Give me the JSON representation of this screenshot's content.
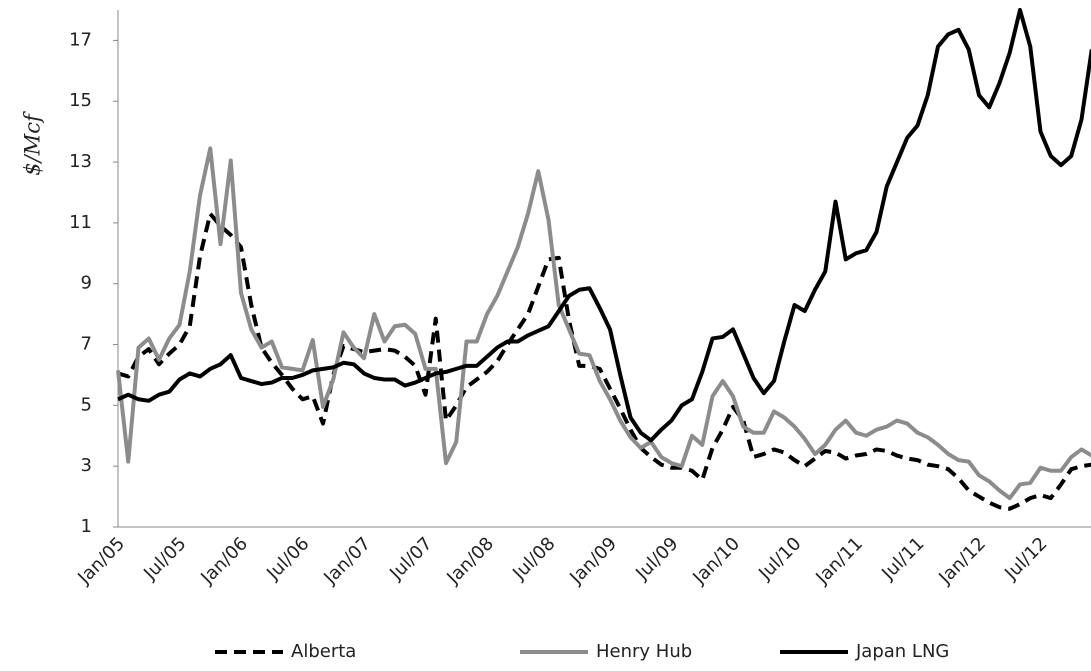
{
  "chart_data": {
    "type": "line",
    "y_label": "$/Mcf",
    "categories": [
      "Jan/05",
      null,
      null,
      null,
      null,
      null,
      "Jul/05",
      null,
      null,
      null,
      null,
      null,
      "Jan/06",
      null,
      null,
      null,
      null,
      null,
      "Jul/06",
      null,
      null,
      null,
      null,
      null,
      "Jan/07",
      null,
      null,
      null,
      null,
      null,
      "Jul/07",
      null,
      null,
      null,
      null,
      null,
      "Jan/08",
      null,
      null,
      null,
      null,
      null,
      "Jul/08",
      null,
      null,
      null,
      null,
      null,
      "Jan/09",
      null,
      null,
      null,
      null,
      null,
      "Jul/09",
      null,
      null,
      null,
      null,
      null,
      "Jan/10",
      null,
      null,
      null,
      null,
      null,
      "Jul/10",
      null,
      null,
      null,
      null,
      null,
      "Jan/11",
      null,
      null,
      null,
      null,
      null,
      "Jul/11",
      null,
      null,
      null,
      null,
      null,
      "Jan/12",
      null,
      null,
      null,
      null,
      null,
      "Jul/12",
      null,
      null,
      null,
      null,
      null
    ],
    "series": [
      {
        "name": "Alberta",
        "color": "#000000",
        "style": "dashed",
        "values": [
          6.05,
          5.95,
          6.6,
          6.85,
          6.35,
          6.7,
          7.0,
          7.6,
          9.9,
          11.3,
          10.9,
          10.6,
          10.2,
          8.3,
          6.9,
          6.4,
          6.0,
          5.55,
          5.2,
          5.3,
          4.4,
          6.0,
          6.95,
          6.85,
          6.75,
          6.8,
          6.85,
          6.8,
          6.6,
          6.3,
          5.35,
          7.85,
          4.5,
          5.0,
          5.6,
          5.85,
          6.1,
          6.45,
          7.0,
          7.5,
          8.0,
          8.9,
          9.8,
          9.85,
          7.8,
          6.3,
          6.3,
          6.2,
          5.55,
          4.9,
          4.2,
          3.6,
          3.3,
          3.05,
          2.95,
          2.95,
          2.85,
          2.55,
          3.6,
          4.2,
          4.95,
          4.5,
          3.3,
          3.4,
          3.55,
          3.45,
          3.2,
          3.0,
          3.25,
          3.5,
          3.45,
          3.25,
          3.35,
          3.4,
          3.55,
          3.5,
          3.35,
          3.25,
          3.2,
          3.05,
          3.0,
          2.9,
          2.6,
          2.2,
          2.0,
          1.8,
          1.65,
          1.6,
          1.75,
          1.95,
          2.05,
          1.95,
          2.4,
          2.9,
          3.0,
          3.05
        ]
      },
      {
        "name": "Henry Hub",
        "color": "#8c8c8c",
        "style": "solid",
        "values": [
          6.15,
          3.15,
          6.9,
          7.2,
          6.5,
          7.2,
          7.65,
          9.4,
          11.9,
          13.45,
          10.3,
          13.05,
          8.7,
          7.5,
          6.9,
          7.1,
          6.25,
          6.2,
          6.15,
          7.15,
          4.95,
          5.85,
          7.4,
          6.9,
          6.55,
          8.0,
          7.1,
          7.6,
          7.65,
          7.35,
          6.2,
          6.2,
          3.1,
          3.8,
          7.1,
          7.1,
          8.0,
          8.6,
          9.4,
          10.2,
          11.3,
          12.7,
          11.1,
          8.3,
          7.5,
          6.7,
          6.65,
          5.8,
          5.2,
          4.5,
          3.95,
          3.6,
          3.8,
          3.3,
          3.1,
          3.0,
          4.0,
          3.7,
          5.3,
          5.8,
          5.3,
          4.3,
          4.1,
          4.1,
          4.8,
          4.6,
          4.3,
          3.9,
          3.4,
          3.7,
          4.2,
          4.5,
          4.1,
          4.0,
          4.2,
          4.3,
          4.5,
          4.4,
          4.1,
          3.95,
          3.7,
          3.4,
          3.2,
          3.15,
          2.7,
          2.5,
          2.2,
          1.95,
          2.4,
          2.45,
          2.95,
          2.85,
          2.85,
          3.3,
          3.55,
          3.35
        ]
      },
      {
        "name": "Japan LNG",
        "color": "#000000",
        "style": "solid",
        "values": [
          5.2,
          5.35,
          5.2,
          5.15,
          5.35,
          5.45,
          5.85,
          6.05,
          5.95,
          6.2,
          6.35,
          6.65,
          5.9,
          5.8,
          5.7,
          5.75,
          5.9,
          5.9,
          6.0,
          6.15,
          6.2,
          6.25,
          6.4,
          6.35,
          6.05,
          5.9,
          5.85,
          5.85,
          5.65,
          5.75,
          5.9,
          6.05,
          6.1,
          6.2,
          6.3,
          6.3,
          6.6,
          6.9,
          7.1,
          7.1,
          7.3,
          7.45,
          7.6,
          8.1,
          8.6,
          8.8,
          8.85,
          8.2,
          7.5,
          6.0,
          4.6,
          4.1,
          3.85,
          4.2,
          4.5,
          5.0,
          5.2,
          6.1,
          7.2,
          7.25,
          7.5,
          6.7,
          5.9,
          5.4,
          5.8,
          7.1,
          8.3,
          8.1,
          8.8,
          9.4,
          11.7,
          9.8,
          10.0,
          10.1,
          10.7,
          12.2,
          13.0,
          13.8,
          14.2,
          15.2,
          16.8,
          17.2,
          17.35,
          16.7,
          15.2,
          14.8,
          15.6,
          16.6,
          18.0,
          16.8,
          14.0,
          13.2,
          12.9,
          13.2,
          14.4,
          16.7
        ]
      }
    ],
    "ylim": [
      1,
      18
    ],
    "yticks": [
      1,
      3,
      5,
      7,
      9,
      11,
      13,
      15,
      17
    ],
    "grid": false,
    "legend": "bottom"
  }
}
